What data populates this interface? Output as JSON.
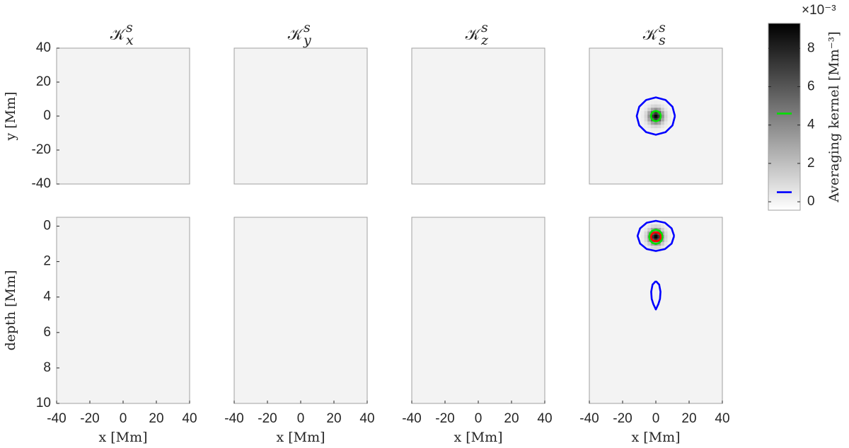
{
  "chart_data": [
    {
      "type": "heatmap",
      "title": {
        "base": "𝒦",
        "sup": "s",
        "sub": "x"
      },
      "ylabel": "y [Mm]",
      "xlim": [
        -40,
        40
      ],
      "ylim": [
        -40,
        40
      ],
      "yticks": [
        40,
        20,
        0,
        -20,
        -40
      ],
      "z_background": 0
    },
    {
      "type": "heatmap",
      "title": {
        "base": "𝒦",
        "sup": "s",
        "sub": "y"
      },
      "xlim": [
        -40,
        40
      ],
      "ylim": [
        -40,
        40
      ],
      "z_background": 0
    },
    {
      "type": "heatmap",
      "title": {
        "base": "𝒦",
        "sup": "s",
        "sub": "z"
      },
      "xlim": [
        -40,
        40
      ],
      "ylim": [
        -40,
        40
      ],
      "z_background": 0
    },
    {
      "type": "heatmap",
      "title": {
        "base": "𝒦",
        "sup": "s",
        "sub": "s"
      },
      "xlim": [
        -40,
        40
      ],
      "ylim": [
        -40,
        40
      ],
      "z_background": 0,
      "cells": {
        "x": [
          -8,
          -6,
          -4,
          -2,
          0,
          2,
          4,
          6,
          8
        ],
        "y": [
          -8,
          -6,
          -4,
          -2,
          0,
          2,
          4,
          6,
          8
        ],
        "z": [
          [
            0,
            0,
            0.1,
            0.2,
            0.3,
            0.2,
            0.1,
            0,
            0
          ],
          [
            0,
            0.2,
            0.5,
            1.0,
            1.2,
            1.0,
            0.5,
            0.2,
            0
          ],
          [
            0.1,
            0.5,
            1.5,
            3.0,
            3.7,
            3.0,
            1.5,
            0.5,
            0.1
          ],
          [
            0.2,
            1.0,
            3.0,
            5.8,
            7.2,
            5.8,
            3.0,
            1.0,
            0.2
          ],
          [
            0.3,
            1.2,
            3.7,
            7.2,
            9.0,
            7.2,
            3.7,
            1.2,
            0.3
          ],
          [
            0.2,
            1.0,
            3.0,
            5.8,
            7.2,
            5.8,
            3.0,
            1.0,
            0.2
          ],
          [
            0.1,
            0.5,
            1.5,
            3.0,
            3.7,
            3.0,
            1.5,
            0.5,
            0.1
          ],
          [
            0,
            0.2,
            0.5,
            1.0,
            1.2,
            1.0,
            0.5,
            0.2,
            0
          ],
          [
            0,
            0,
            0.1,
            0.2,
            0.3,
            0.2,
            0.1,
            0,
            0
          ]
        ]
      },
      "contours": [
        {
          "level": 0.5,
          "color": "#0000ff",
          "x": [
            11.5,
            10,
            5.8,
            0,
            -5.8,
            -10,
            -11.5,
            -10,
            -5.8,
            0,
            5.8,
            10,
            11.5
          ],
          "y": [
            0,
            5.5,
            9.5,
            11,
            9.5,
            5.5,
            0,
            -5.5,
            -9.5,
            -11,
            -9.5,
            -5.5,
            0
          ]
        },
        {
          "level": 4.6,
          "color": "#00e000",
          "x": [
            3,
            2.6,
            1.5,
            0,
            -1.5,
            -2.6,
            -3,
            -2.6,
            -1.5,
            0,
            1.5,
            2.6,
            3
          ],
          "y": [
            0,
            1.5,
            2.6,
            3,
            2.6,
            1.5,
            0,
            -1.5,
            -2.6,
            -3,
            -2.6,
            -1.5,
            0
          ]
        }
      ]
    },
    {
      "type": "heatmap",
      "xlabel": "x [Mm]",
      "ylabel": "depth [Mm]",
      "xlim": [
        -40,
        40
      ],
      "ylim": [
        10,
        -0.5
      ],
      "xticks": [
        -40,
        -20,
        0,
        20,
        40
      ],
      "yticks": [
        0,
        2,
        4,
        6,
        8,
        10
      ],
      "z_background": 0
    },
    {
      "type": "heatmap",
      "xlabel": "x [Mm]",
      "xlim": [
        -40,
        40
      ],
      "ylim": [
        10,
        -0.5
      ],
      "xticks": [
        -40,
        -20,
        0,
        20,
        40
      ],
      "z_background": 0
    },
    {
      "type": "heatmap",
      "xlabel": "x [Mm]",
      "xlim": [
        -40,
        40
      ],
      "ylim": [
        10,
        -0.5
      ],
      "xticks": [
        -40,
        -20,
        0,
        20,
        40
      ],
      "z_background": 0
    },
    {
      "type": "heatmap",
      "xlabel": "x [Mm]",
      "xlim": [
        -40,
        40
      ],
      "ylim": [
        10,
        -0.5
      ],
      "xticks": [
        -40,
        -20,
        0,
        20,
        40
      ],
      "z_background": 0,
      "cells": {
        "x": [
          -8,
          -6,
          -4,
          -2,
          0,
          2,
          4,
          6,
          8
        ],
        "y": [
          -0.2,
          0,
          0.2,
          0.4,
          0.6,
          0.8,
          1.0,
          1.2,
          1.4
        ],
        "z": [
          [
            0,
            0,
            0.1,
            0.2,
            0.3,
            0.2,
            0.1,
            0,
            0
          ],
          [
            0,
            0.2,
            0.5,
            1.0,
            1.2,
            1.0,
            0.5,
            0.2,
            0
          ],
          [
            0.1,
            0.5,
            1.5,
            3.0,
            3.7,
            3.0,
            1.5,
            0.5,
            0.1
          ],
          [
            0.2,
            1.0,
            3.0,
            5.8,
            7.2,
            5.8,
            3.0,
            1.0,
            0.2
          ],
          [
            0.3,
            1.2,
            3.7,
            7.2,
            9.0,
            7.2,
            3.7,
            1.2,
            0.3
          ],
          [
            0.2,
            1.0,
            3.0,
            5.8,
            7.2,
            5.8,
            3.0,
            1.0,
            0.2
          ],
          [
            0.1,
            0.5,
            1.5,
            3.0,
            3.7,
            3.0,
            1.5,
            0.5,
            0.1
          ],
          [
            0,
            0.2,
            0.5,
            1.0,
            1.2,
            1.0,
            0.5,
            0.2,
            0
          ],
          [
            0,
            0,
            0.1,
            0.2,
            0.3,
            0.2,
            0.1,
            0,
            0
          ]
        ]
      },
      "contours": [
        {
          "level": 0.5,
          "color": "#0000ff",
          "x": [
            11,
            9.5,
            5.5,
            0,
            -5.5,
            -9.5,
            -11,
            -9.5,
            -5.5,
            0,
            5.5,
            9.5,
            11
          ],
          "y": [
            0.55,
            0.13,
            -0.19,
            -0.3,
            -0.19,
            0.13,
            0.55,
            0.98,
            1.29,
            1.4,
            1.29,
            0.98,
            0.55
          ]
        },
        {
          "level": 0.5,
          "color": "#0000ff",
          "x": [
            0,
            2,
            2.8,
            2.5,
            1.5,
            0,
            -1.5,
            -2.5,
            -2.8,
            -2,
            0
          ],
          "y": [
            3.1,
            3.3,
            3.7,
            4.1,
            4.4,
            4.7,
            4.4,
            4.1,
            3.7,
            3.3,
            3.1
          ]
        },
        {
          "level": 4.6,
          "color": "#00e000",
          "x": [
            4,
            3.5,
            2,
            0,
            -2,
            -3.5,
            -4,
            -3.5,
            -2,
            0,
            2,
            3.5,
            4
          ],
          "y": [
            0.6,
            0.4,
            0.25,
            0.2,
            0.25,
            0.4,
            0.6,
            0.8,
            0.95,
            1.0,
            0.95,
            0.8,
            0.6
          ]
        },
        {
          "color": "#ff0000",
          "x": [
            3,
            2.6,
            1.5,
            0,
            -1.5,
            -2.6,
            -3,
            -2.6,
            -1.5,
            0,
            1.5,
            2.6,
            3
          ],
          "y": [
            0.6,
            0.48,
            0.38,
            0.35,
            0.38,
            0.48,
            0.6,
            0.73,
            0.82,
            0.85,
            0.82,
            0.73,
            0.6
          ]
        }
      ]
    },
    {
      "type": "colorbar",
      "label": "Averaging kernel [Mm⁻³]",
      "exponent": "×10⁻³",
      "colormap": "gray-reversed",
      "clim": [
        -0.44,
        9.3
      ],
      "ticks": [
        0,
        2,
        4,
        6,
        8
      ]
    }
  ]
}
